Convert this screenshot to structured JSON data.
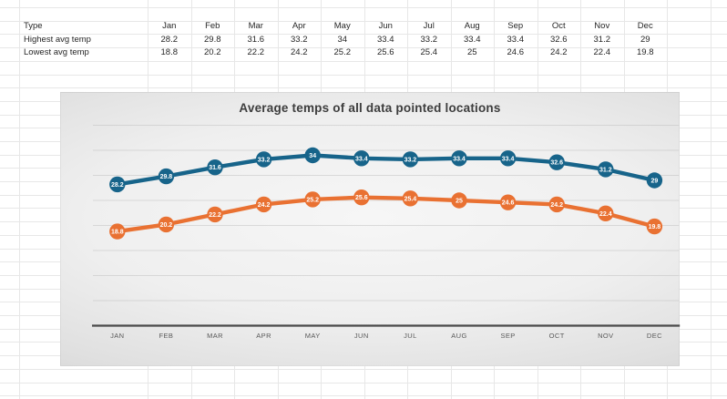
{
  "table": {
    "header_label": "Type",
    "months": [
      "Jan",
      "Feb",
      "Mar",
      "Apr",
      "May",
      "Jun",
      "Jul",
      "Aug",
      "Sep",
      "Oct",
      "Nov",
      "Dec"
    ],
    "rows": [
      {
        "label": "Highest avg temp",
        "values": [
          28.2,
          29.8,
          31.6,
          33.2,
          34,
          33.4,
          33.2,
          33.4,
          33.4,
          32.6,
          31.2,
          29
        ]
      },
      {
        "label": "Lowest avg temp",
        "values": [
          18.8,
          20.2,
          22.2,
          24.2,
          25.2,
          25.6,
          25.4,
          25,
          24.6,
          24.2,
          22.4,
          19.8
        ]
      }
    ]
  },
  "chart_data": {
    "type": "line",
    "title": "Average temps of all data pointed locations",
    "categories": [
      "JAN",
      "FEB",
      "MAR",
      "APR",
      "MAY",
      "JUN",
      "JUL",
      "AUG",
      "SEP",
      "OCT",
      "NOV",
      "DEC"
    ],
    "series": [
      {
        "name": "Highest avg temp",
        "color": "#17648A",
        "values": [
          28.2,
          29.8,
          31.6,
          33.2,
          34,
          33.4,
          33.2,
          33.4,
          33.4,
          32.6,
          31.2,
          29
        ]
      },
      {
        "name": "Lowest avg temp",
        "color": "#E97132",
        "values": [
          18.8,
          20.2,
          22.2,
          24.2,
          25.2,
          25.6,
          25.4,
          25,
          24.6,
          24.2,
          22.4,
          19.8
        ]
      }
    ],
    "xlabel": "",
    "ylabel": "",
    "ylim": [
      0,
      45
    ],
    "gridline_step": 5,
    "grid": true,
    "legend": "none",
    "data_labels": "inside circular markers",
    "marker_label_color": "#ffffff",
    "axis_line_color": "#4a4a4a",
    "axis_label_color": "#595959",
    "gridline_color": "#b5b5b5"
  }
}
